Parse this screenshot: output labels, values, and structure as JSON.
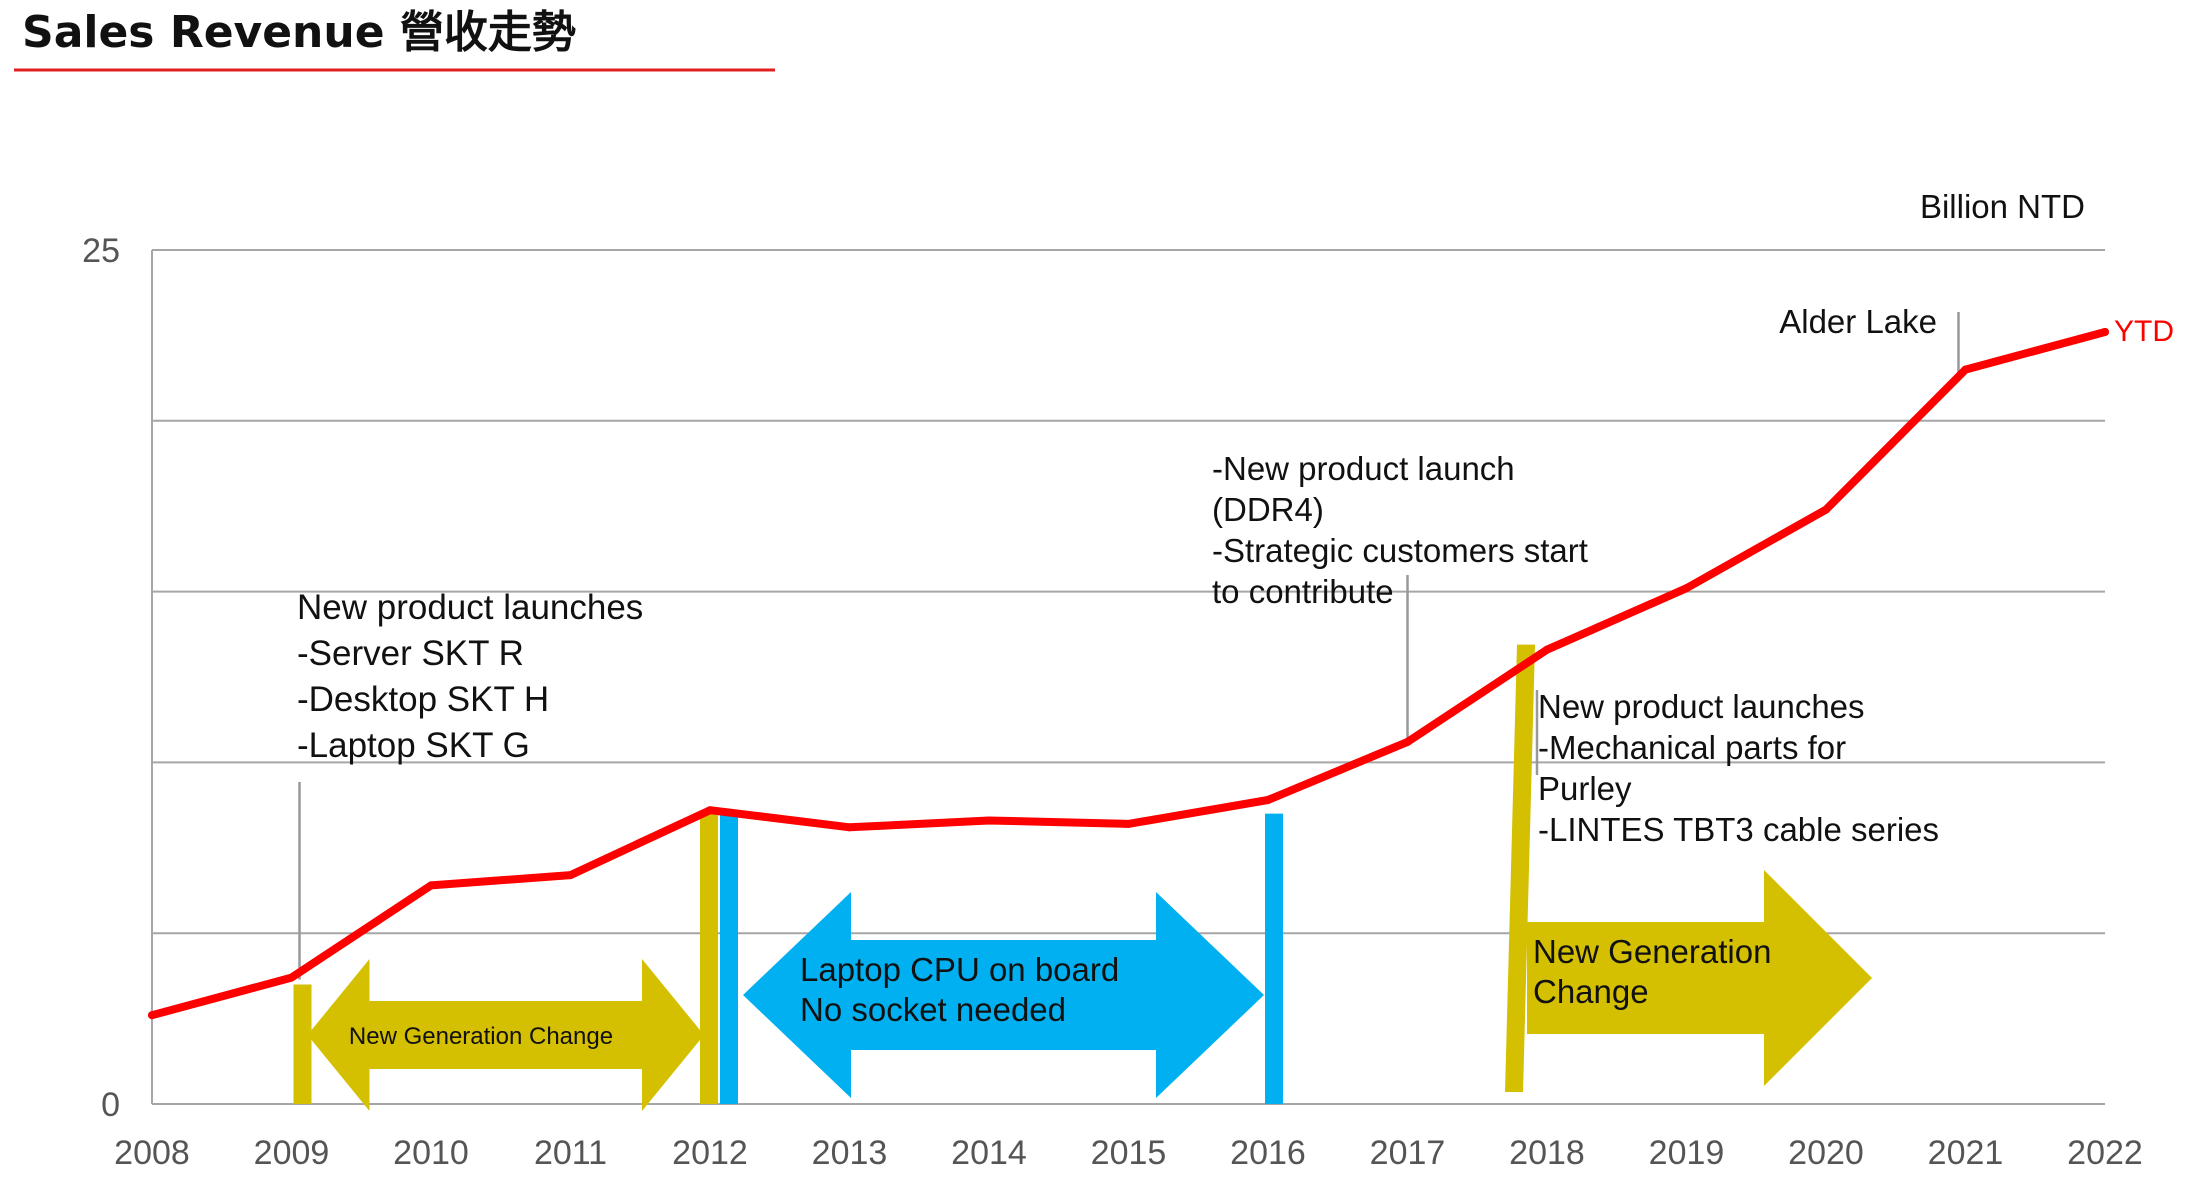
{
  "title": "Sales Revenue 營收走勢",
  "colors": {
    "line": "#ff0000",
    "gold": "#d4bf00",
    "blue": "#00b0f0",
    "grid": "#a6a6a6",
    "title_rule": "#e02020"
  },
  "chart_data": {
    "type": "line",
    "unit_label": "Billion NTD",
    "x": [
      "2008",
      "2009",
      "2010",
      "2011",
      "2012",
      "2013",
      "2014",
      "2015",
      "2016",
      "2017",
      "2018",
      "2019",
      "2020",
      "2021",
      "2022"
    ],
    "values": [
      2.6,
      3.7,
      6.4,
      6.7,
      8.6,
      8.1,
      8.3,
      8.2,
      8.9,
      10.6,
      13.3,
      15.1,
      17.4,
      21.5,
      22.6
    ],
    "end_label": "YTD",
    "ylim": [
      0,
      25
    ],
    "y_tick_labels": [
      "0",
      "25"
    ],
    "gridlines": [
      0,
      5,
      10,
      15,
      20,
      25
    ],
    "annotations": [
      {
        "id": "a2009",
        "x": 2009,
        "lines": [
          "New product launches",
          "-Server SKT R",
          "-Desktop SKT H",
          "-Laptop SKT G"
        ]
      },
      {
        "id": "a2017",
        "x": 2017,
        "lines": [
          "-New product launch",
          "(DDR4)",
          "-Strategic customers start",
          "to contribute"
        ]
      },
      {
        "id": "a2018",
        "x": 2018,
        "lines": [
          "New product launches",
          "-Mechanical parts for",
          "Purley",
          "-LINTES TBT3 cable series"
        ]
      },
      {
        "id": "a2021",
        "x": 2021,
        "lines": [
          "Alder Lake"
        ]
      }
    ],
    "periods": [
      {
        "id": "p1",
        "from": 2009,
        "to": 2012,
        "label": "New Generation Change",
        "color": "gold"
      },
      {
        "id": "p2",
        "from": 2012,
        "to": 2016,
        "lines": [
          "Laptop CPU on board",
          "No socket needed"
        ],
        "color": "blue"
      },
      {
        "id": "p3",
        "from": 2018,
        "lines": [
          "New Generation",
          "Change"
        ],
        "color": "gold"
      }
    ]
  }
}
